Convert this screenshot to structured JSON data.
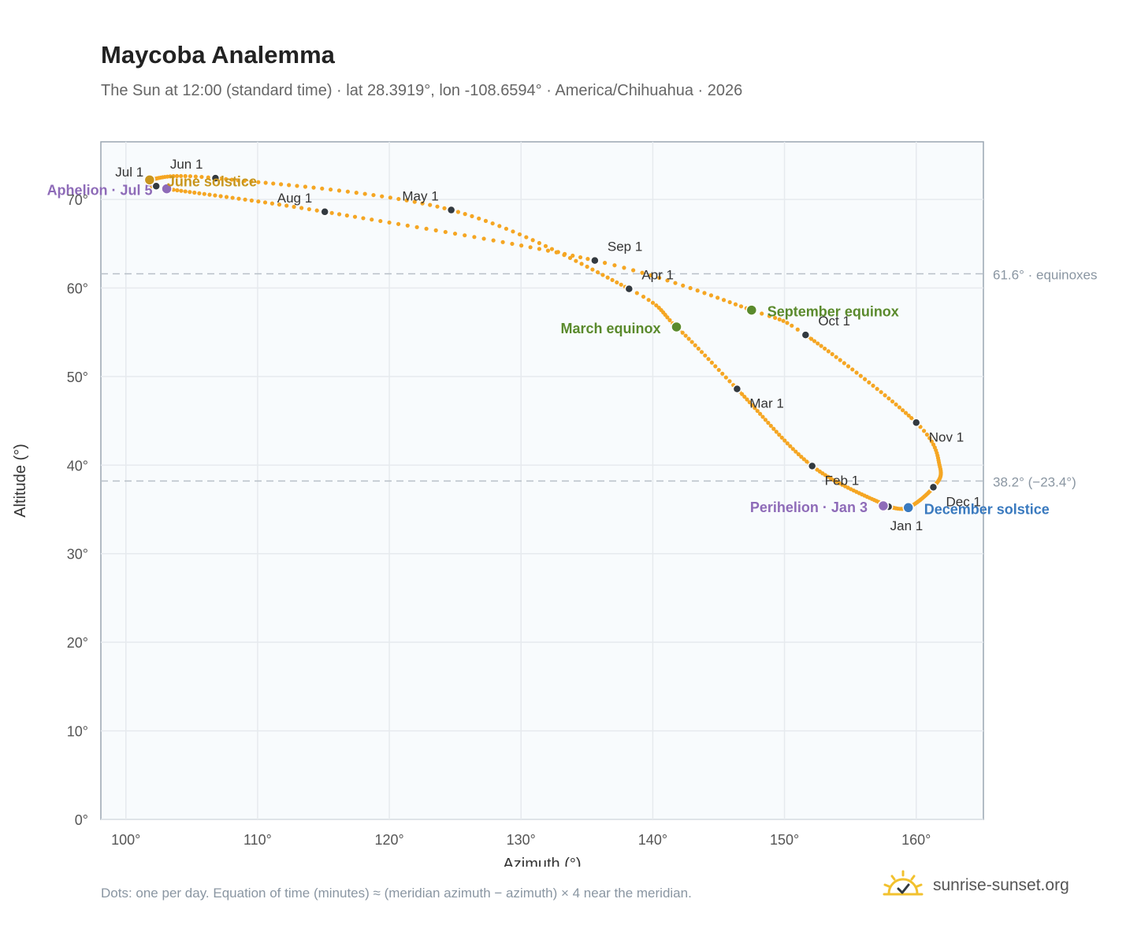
{
  "title": "Maycoba Analemma",
  "subtitle": "The Sun at 12:00 (standard time) · lat 28.3919°, lon -108.6594° · America/Chihuahua · 2026",
  "footnote": "Dots: one per day. Equation of time (minutes) ≈ (meridian azimuth − azimuth) × 4 near the meridian.",
  "brand": {
    "name": "sunrise-sunset.org",
    "logo_icon": "sun-logo-icon",
    "logo_color": "#f2c12e"
  },
  "colors": {
    "path": "#f5a623",
    "month_marker": "#333a40",
    "event_aphelion_perihelion": "#8e6bb8",
    "event_equinox": "#5a8a2c",
    "event_june_solstice": "#c8961e",
    "event_december_solstice": "#3a7abf",
    "grid": "#e6eaee",
    "plot_bg": "#f8fbfd",
    "ref_line": "#b8c0c8"
  },
  "chart_data": {
    "type": "scatter",
    "xlabel": "Azimuth (°)",
    "ylabel": "Altitude (°)",
    "xlim": [
      98.1,
      165.1
    ],
    "ylim": [
      0,
      76.5
    ],
    "grid": true,
    "x_ticks": [
      {
        "value": 100,
        "label": "100°"
      },
      {
        "value": 110,
        "label": "110°"
      },
      {
        "value": 120,
        "label": "120°"
      },
      {
        "value": 130,
        "label": "130°"
      },
      {
        "value": 140,
        "label": "140°"
      },
      {
        "value": 150,
        "label": "150°"
      },
      {
        "value": 160,
        "label": "160°"
      }
    ],
    "y_ticks": [
      {
        "value": 0,
        "label": "0°"
      },
      {
        "value": 10,
        "label": "10°"
      },
      {
        "value": 20,
        "label": "20°"
      },
      {
        "value": 30,
        "label": "30°"
      },
      {
        "value": 40,
        "label": "40°"
      },
      {
        "value": 50,
        "label": "50°"
      },
      {
        "value": 60,
        "label": "60°"
      },
      {
        "value": 70,
        "label": "70°"
      }
    ],
    "reference_lines": [
      {
        "altitude": 61.6,
        "label": "61.6° · equinoxes"
      },
      {
        "altitude": 38.2,
        "label": "38.2° (−23.4°)"
      }
    ],
    "month_markers": [
      {
        "label": "Jan 1",
        "azimuth": 157.9,
        "altitude": 35.3
      },
      {
        "label": "Feb 1",
        "azimuth": 152.1,
        "altitude": 39.9
      },
      {
        "label": "Mar 1",
        "azimuth": 146.4,
        "altitude": 48.6
      },
      {
        "label": "Apr 1",
        "azimuth": 138.2,
        "altitude": 59.9
      },
      {
        "label": "May 1",
        "azimuth": 124.7,
        "altitude": 68.8
      },
      {
        "label": "Jun 1",
        "azimuth": 106.8,
        "altitude": 72.4
      },
      {
        "label": "Jul 1",
        "azimuth": 102.3,
        "altitude": 71.5
      },
      {
        "label": "Aug 1",
        "azimuth": 115.1,
        "altitude": 68.6
      },
      {
        "label": "Sep 1",
        "azimuth": 135.6,
        "altitude": 63.1
      },
      {
        "label": "Oct 1",
        "azimuth": 151.6,
        "altitude": 54.7
      },
      {
        "label": "Nov 1",
        "azimuth": 160.0,
        "altitude": 44.8
      },
      {
        "label": "Dec 1",
        "azimuth": 161.3,
        "altitude": 37.5
      }
    ],
    "events": [
      {
        "label": "Aphelion · Jul 5",
        "azimuth": 103.1,
        "altitude": 71.2,
        "color": "#8e6bb8"
      },
      {
        "label": "June solstice",
        "azimuth": 101.8,
        "altitude": 72.2,
        "color": "#c8961e"
      },
      {
        "label": "March equinox",
        "azimuth": 141.8,
        "altitude": 55.6,
        "color": "#5a8a2c"
      },
      {
        "label": "September equinox",
        "azimuth": 147.5,
        "altitude": 57.5,
        "color": "#5a8a2c"
      },
      {
        "label": "Perihelion · Jan 3",
        "azimuth": 157.5,
        "altitude": 35.4,
        "color": "#8e6bb8"
      },
      {
        "label": "December solstice",
        "azimuth": 159.4,
        "altitude": 35.2,
        "color": "#3a7abf"
      }
    ],
    "path_anchors": [
      {
        "day": 1,
        "azimuth": 157.9,
        "altitude": 35.3
      },
      {
        "day": 32,
        "azimuth": 152.1,
        "altitude": 39.9
      },
      {
        "day": 60,
        "azimuth": 146.4,
        "altitude": 48.6
      },
      {
        "day": 78,
        "azimuth": 141.8,
        "altitude": 55.6
      },
      {
        "day": 91,
        "azimuth": 138.2,
        "altitude": 59.9
      },
      {
        "day": 121,
        "azimuth": 124.7,
        "altitude": 68.8
      },
      {
        "day": 152,
        "azimuth": 106.8,
        "altitude": 72.4
      },
      {
        "day": 172,
        "azimuth": 101.8,
        "altitude": 72.2
      },
      {
        "day": 182,
        "azimuth": 102.3,
        "altitude": 71.5
      },
      {
        "day": 186,
        "azimuth": 103.1,
        "altitude": 71.2
      },
      {
        "day": 213,
        "azimuth": 115.1,
        "altitude": 68.6
      },
      {
        "day": 244,
        "azimuth": 135.6,
        "altitude": 63.1
      },
      {
        "day": 265,
        "azimuth": 147.5,
        "altitude": 57.5
      },
      {
        "day": 274,
        "azimuth": 151.6,
        "altitude": 54.7
      },
      {
        "day": 305,
        "azimuth": 160.0,
        "altitude": 44.8
      },
      {
        "day": 320,
        "azimuth": 161.8,
        "altitude": 39.8
      },
      {
        "day": 335,
        "azimuth": 161.3,
        "altitude": 37.5
      },
      {
        "day": 355,
        "azimuth": 159.4,
        "altitude": 35.2
      },
      {
        "day": 366,
        "azimuth": 157.9,
        "altitude": 35.3
      }
    ]
  }
}
